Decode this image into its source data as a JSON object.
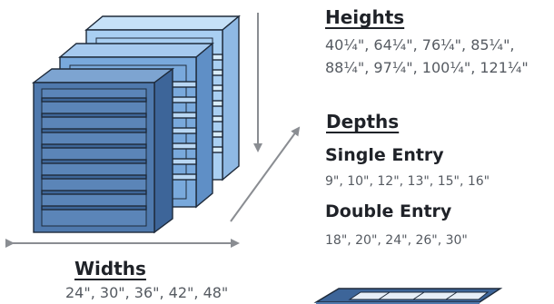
{
  "heights": {
    "title": "Heights",
    "line1": "40¼\", 64¼\", 76¼\", 85¼\",",
    "line2": "88¼\", 97¼\", 100¼\", 121¼\""
  },
  "depths": {
    "title": "Depths",
    "single_entry": {
      "title": "Single Entry",
      "values": "9\", 10\", 12\", 13\", 15\", 16\""
    },
    "double_entry": {
      "title": "Double Entry",
      "values": "18\", 20\", 24\", 26\", 30\""
    }
  },
  "widths": {
    "title": "Widths",
    "values": "24\", 30\", 36\", 42\", 48\""
  },
  "colors": {
    "front_unit": "#4f79ad",
    "middle_unit": "#79a9dc",
    "back_unit": "#a9cff2",
    "outline": "#1e2a3a",
    "arrow": "#8a8d92",
    "text": "#1f2228",
    "values_text": "#555a61"
  }
}
